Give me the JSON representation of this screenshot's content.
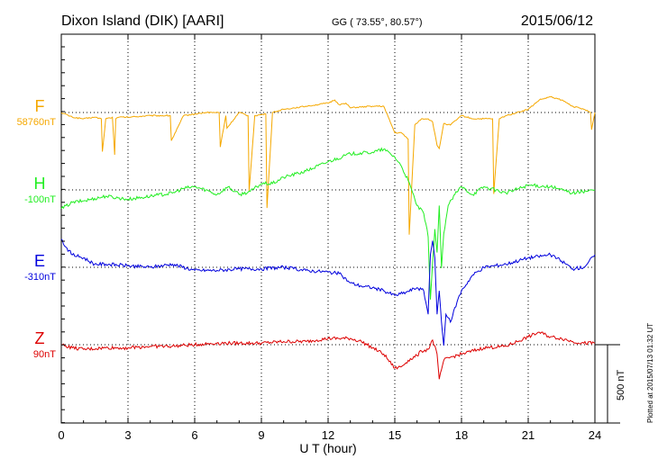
{
  "header": {
    "station": "Dixon Island (DIK)  [AARI]",
    "coords": "GG ( 73.55°,  80.57°)",
    "date": "2015/06/12"
  },
  "side_note": "Plotted at 2015/07/13 01:32 UT",
  "scale_label": "500 nT",
  "chart_data": {
    "type": "line",
    "xlabel": "U T (hour)",
    "xlim": [
      0,
      24
    ],
    "x_ticks": [
      "0",
      "3",
      "6",
      "9",
      "12",
      "15",
      "18",
      "21",
      "24"
    ],
    "y_unit": "nT",
    "scale_bar_nT": 500,
    "series": [
      {
        "name": "F",
        "baseline_label": "58760nT",
        "color": "#f5a800",
        "x": [
          0,
          0.5,
          1,
          1.5,
          1.8,
          1.85,
          2,
          2.3,
          2.4,
          2.45,
          2.6,
          3,
          4,
          4.9,
          4.95,
          5.5,
          6,
          6.5,
          7.1,
          7.15,
          7.4,
          7.45,
          8,
          8.4,
          8.45,
          8.7,
          9.2,
          9.25,
          9.5,
          10,
          11,
          12,
          12.3,
          12.5,
          12.8,
          13,
          14,
          14.5,
          15,
          15.3,
          15.6,
          15.65,
          15.9,
          16.2,
          16.5,
          16.7,
          16.9,
          17,
          17.2,
          17.5,
          18,
          18.5,
          19,
          19.4,
          19.45,
          19.7,
          20,
          20.5,
          21,
          21.5,
          22,
          22.5,
          23,
          23.5,
          23.8,
          23.85,
          24
        ],
        "y": [
          0,
          -30,
          -40,
          -30,
          -40,
          -250,
          -40,
          -30,
          -270,
          -40,
          -30,
          -30,
          -20,
          -20,
          -180,
          -20,
          -10,
          0,
          0,
          -220,
          -20,
          -100,
          0,
          -20,
          -500,
          -20,
          -10,
          -610,
          0,
          20,
          40,
          60,
          80,
          50,
          60,
          30,
          40,
          40,
          -130,
          -130,
          -170,
          -780,
          -80,
          -40,
          -40,
          -60,
          -210,
          -230,
          -70,
          -80,
          -20,
          -40,
          -40,
          -40,
          -520,
          -40,
          -20,
          0,
          20,
          80,
          100,
          80,
          40,
          20,
          0,
          -110,
          0
        ]
      },
      {
        "name": "H",
        "baseline_label": "-100nT",
        "color": "#22ee22",
        "x": [
          0,
          0.5,
          1,
          2,
          3,
          4,
          5,
          5.5,
          6,
          6.5,
          7,
          7.5,
          8,
          8.5,
          9,
          9.5,
          10,
          11,
          12,
          13,
          14,
          14.5,
          15,
          15.3,
          15.6,
          16,
          16.3,
          16.5,
          16.6,
          16.8,
          16.9,
          17,
          17.1,
          17.2,
          17.4,
          17.7,
          18,
          18.5,
          19,
          20,
          21,
          22,
          23,
          24
        ],
        "y": [
          -120,
          -80,
          -70,
          -40,
          -60,
          -40,
          -20,
          10,
          20,
          0,
          -30,
          20,
          -30,
          -10,
          40,
          40,
          80,
          120,
          180,
          230,
          240,
          260,
          210,
          150,
          60,
          -100,
          -150,
          -300,
          -700,
          -250,
          -400,
          -100,
          -500,
          -280,
          -100,
          -30,
          20,
          -30,
          20,
          -20,
          30,
          20,
          -20,
          0
        ]
      },
      {
        "name": "E",
        "baseline_label": "-310nT",
        "color": "#0000dd",
        "x": [
          0,
          0.2,
          0.5,
          1,
          1.5,
          2,
          3,
          4,
          5,
          6,
          7,
          8,
          9,
          10,
          11,
          12,
          12.5,
          13,
          13.5,
          14,
          14.5,
          15,
          15.5,
          16,
          16.3,
          16.5,
          16.6,
          16.7,
          16.8,
          16.9,
          17,
          17.1,
          17.2,
          17.3,
          17.5,
          17.8,
          18,
          18.5,
          19,
          20,
          21,
          22,
          22.5,
          23,
          23.5,
          24
        ],
        "y": [
          180,
          130,
          80,
          60,
          20,
          20,
          10,
          0,
          20,
          -20,
          -20,
          -10,
          -10,
          0,
          -20,
          -30,
          -40,
          -100,
          -120,
          -130,
          -150,
          -180,
          -160,
          -130,
          -150,
          -300,
          80,
          170,
          60,
          -300,
          -150,
          -350,
          -500,
          -300,
          -350,
          -220,
          -150,
          -50,
          0,
          20,
          60,
          80,
          40,
          -10,
          0,
          80
        ]
      },
      {
        "name": "Z",
        "baseline_label": "90nT",
        "color": "#dd0000",
        "x": [
          0,
          0.5,
          1,
          2,
          3,
          4,
          5,
          6,
          7,
          8,
          9,
          10,
          11,
          11.5,
          12,
          13,
          13.5,
          14,
          14.5,
          15,
          15.3,
          15.6,
          16,
          16.2,
          16.5,
          16.7,
          16.9,
          17,
          17.2,
          17.5,
          18,
          19,
          20,
          21,
          21.5,
          22,
          22.5,
          23,
          23.5,
          24
        ],
        "y": [
          0,
          -20,
          -30,
          -20,
          -20,
          -10,
          -10,
          0,
          10,
          10,
          10,
          20,
          20,
          30,
          40,
          40,
          20,
          -20,
          -60,
          -150,
          -140,
          -100,
          -70,
          -40,
          -30,
          30,
          -60,
          -220,
          -100,
          -80,
          -60,
          -20,
          -10,
          50,
          80,
          50,
          40,
          20,
          10,
          10
        ]
      }
    ]
  }
}
